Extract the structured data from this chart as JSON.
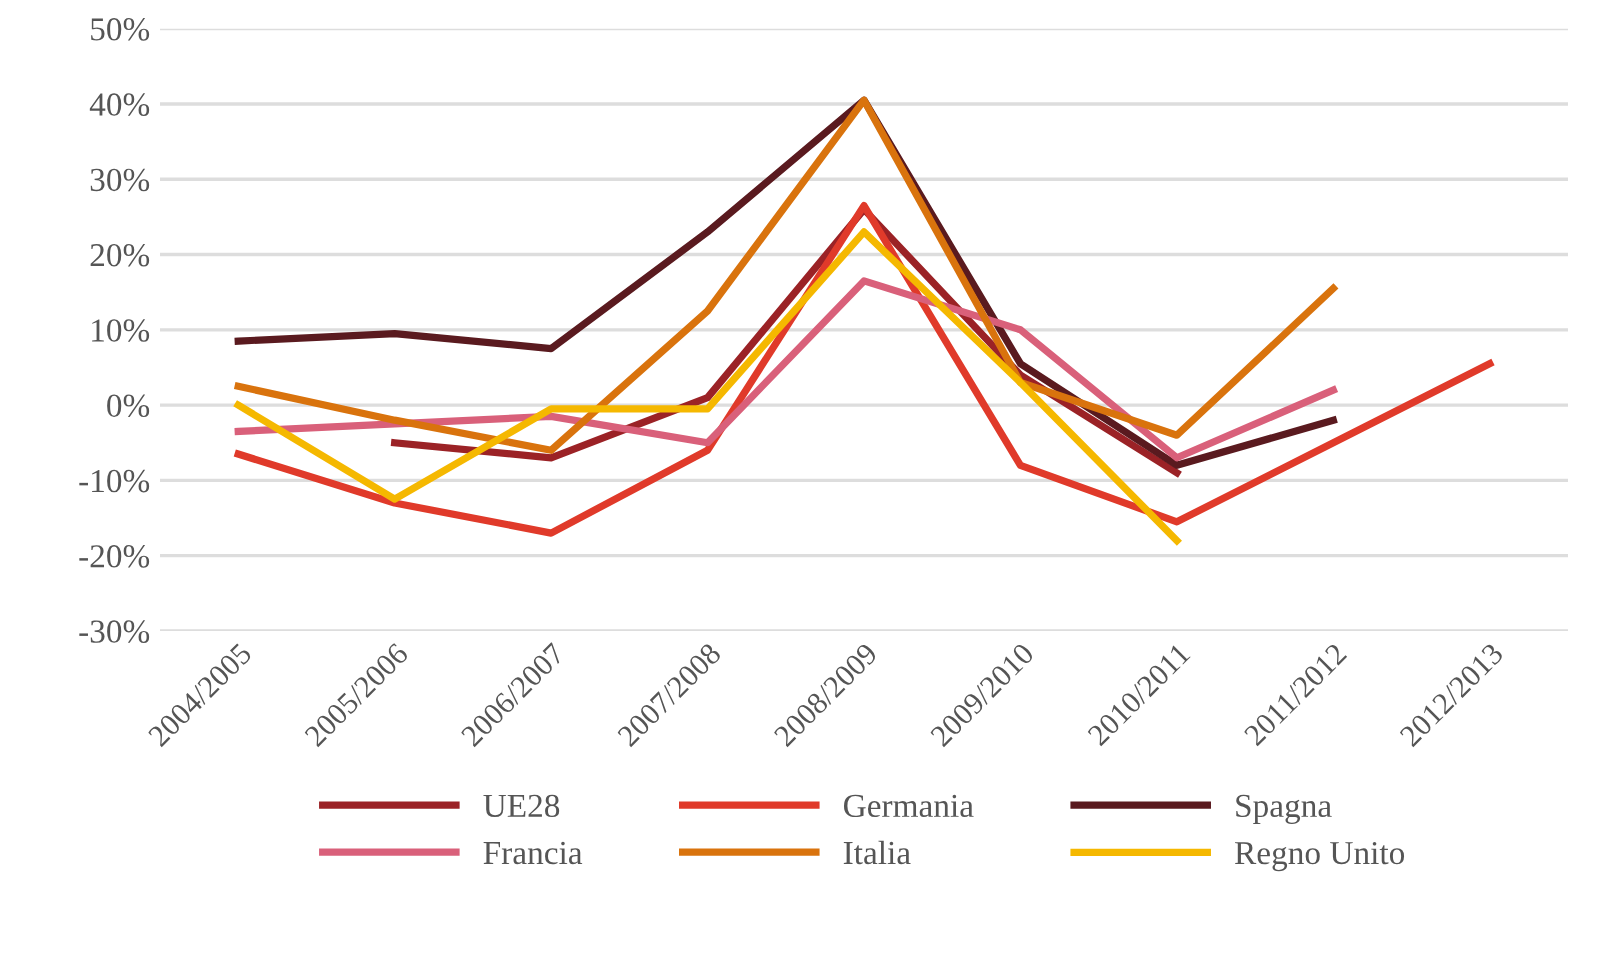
{
  "chart_data": {
    "type": "line",
    "categories": [
      "2004/2005",
      "2005/2006",
      "2006/2007",
      "2007/2008",
      "2008/2009",
      "2009/2010",
      "2010/2011",
      "2011/2012",
      "2012/2013"
    ],
    "series": [
      {
        "name": "UE28",
        "color": "#9b2226",
        "values": [
          null,
          -5,
          -7,
          1,
          26,
          4,
          -9,
          null,
          null
        ]
      },
      {
        "name": "Germania",
        "color": "#e03a2a",
        "values": [
          -6.5,
          -13,
          -17,
          -6,
          26.5,
          -8,
          -15.5,
          -5,
          5.5
        ]
      },
      {
        "name": "Spagna",
        "color": "#5a1a1f",
        "values": [
          8.5,
          9.5,
          7.5,
          23,
          40.5,
          5.5,
          -8,
          -2,
          null
        ]
      },
      {
        "name": "Francia",
        "color": "#d9607a",
        "values": [
          -3.5,
          -2.5,
          -1.5,
          -5,
          16.5,
          10,
          -7,
          2,
          null
        ]
      },
      {
        "name": "Italia",
        "color": "#d9730d",
        "values": [
          2.5,
          -2,
          -6,
          12.5,
          40.5,
          3,
          -4,
          15.5,
          null
        ]
      },
      {
        "name": "Regno Unito",
        "color": "#f5b800",
        "values": [
          0,
          -12.5,
          -0.5,
          -0.5,
          23,
          3,
          -18,
          null,
          null
        ]
      }
    ],
    "ylim": [
      -30,
      50
    ],
    "yticks": [
      {
        "value": -30,
        "label": "-30%"
      },
      {
        "value": -20,
        "label": "-20%"
      },
      {
        "value": -10,
        "label": "-10%"
      },
      {
        "value": 0,
        "label": "0%"
      },
      {
        "value": 10,
        "label": "10%"
      },
      {
        "value": 20,
        "label": "20%"
      },
      {
        "value": 30,
        "label": "30%"
      },
      {
        "value": 40,
        "label": "40%"
      },
      {
        "value": 50,
        "label": "50%"
      }
    ],
    "grid": "y",
    "legend": "bottom",
    "marker": "none",
    "line_style": "solid"
  }
}
